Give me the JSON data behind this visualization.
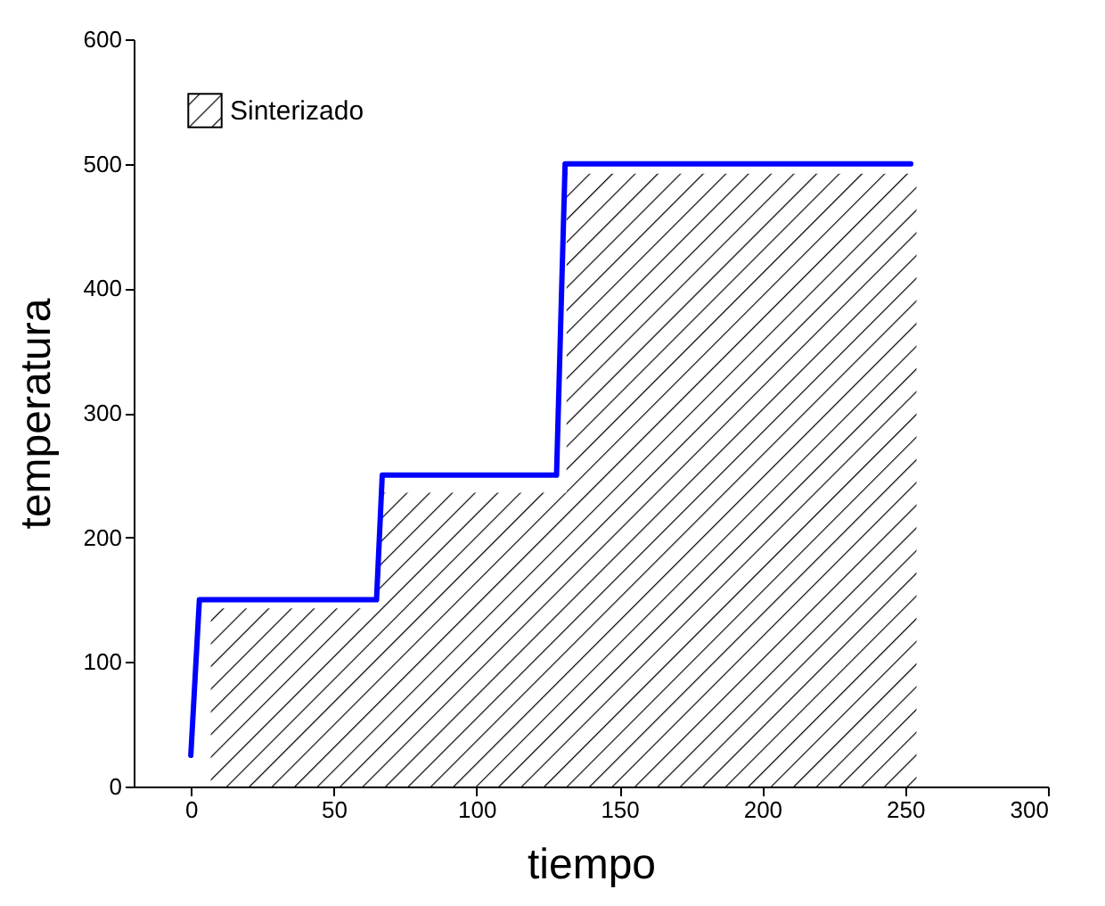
{
  "chart_data": {
    "type": "line",
    "xlabel": "tiempo",
    "ylabel": "temperatura",
    "xlim": [
      -20,
      300
    ],
    "xticks": [
      0,
      50,
      100,
      150,
      200,
      250,
      300
    ],
    "ylim": [
      0,
      600
    ],
    "yticks": [
      0,
      100,
      200,
      300,
      400,
      500,
      600
    ],
    "grid": false,
    "legend": "top left",
    "series": [
      {
        "type": "area",
        "name": "Sinterizado",
        "color": "#000000",
        "x": [
          7,
          66,
          66,
          131.5,
          131.5,
          254
        ],
        "values": [
          143,
          143,
          236,
          236,
          492,
          492
        ]
      },
      {
        "type": "line",
        "color": "#0000ff",
        "x": [
          0,
          3,
          65,
          67,
          128,
          131,
          252
        ],
        "values": [
          25,
          150,
          150,
          250,
          250,
          500,
          500
        ]
      }
    ]
  }
}
